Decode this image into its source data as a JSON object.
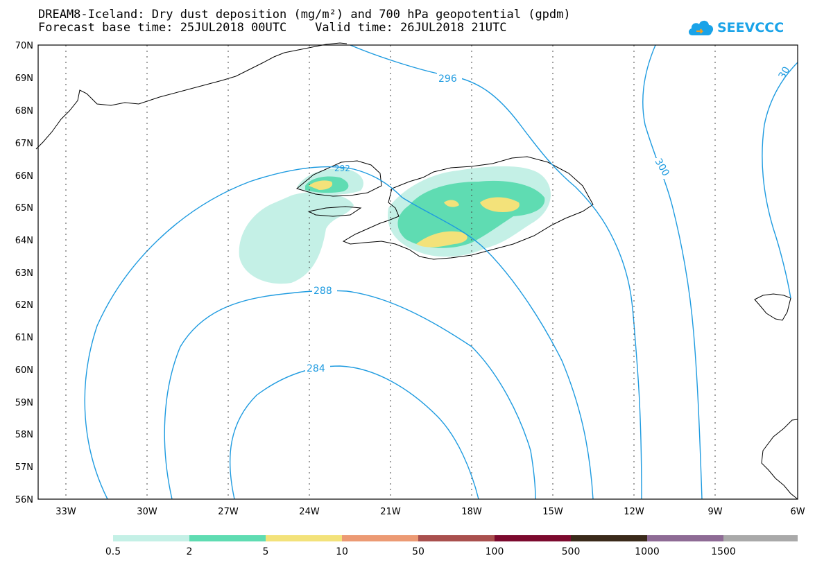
{
  "header": {
    "title_line1": "DREAM8-Iceland: Dry dust deposition (mg/m²) and 700 hPa geopotential (gpdm)",
    "title_line2": "Forecast base time: 25JUL2018 00UTC    Valid time: 26JUL2018 21UTC"
  },
  "logo": {
    "text": "SEEVCCC",
    "icon": "cloud-logo-icon",
    "color": "#1aa3e8"
  },
  "map": {
    "lat_labels": [
      "70N",
      "69N",
      "68N",
      "67N",
      "66N",
      "65N",
      "64N",
      "63N",
      "62N",
      "61N",
      "60N",
      "59N",
      "58N",
      "57N",
      "56N"
    ],
    "lon_labels": [
      "33W",
      "30W",
      "27W",
      "24W",
      "21W",
      "18W",
      "15W",
      "12W",
      "9W",
      "6W"
    ],
    "contour_color": "#1e9be0",
    "contour_labels": {
      "c296": "296",
      "c300": "300",
      "c30": "30",
      "c288": "288",
      "c284": "284",
      "c292": "292"
    }
  },
  "colorbar": {
    "colors": [
      "#c4f0e6",
      "#5fdcb2",
      "#f3e27a",
      "#ec9a74",
      "#a9504e",
      "#7c0a2e",
      "#3a2a1a",
      "#8e6b95",
      "#a9a9a9"
    ],
    "labels": [
      "0.5",
      "2",
      "5",
      "10",
      "50",
      "100",
      "500",
      "1000",
      "1500"
    ]
  }
}
